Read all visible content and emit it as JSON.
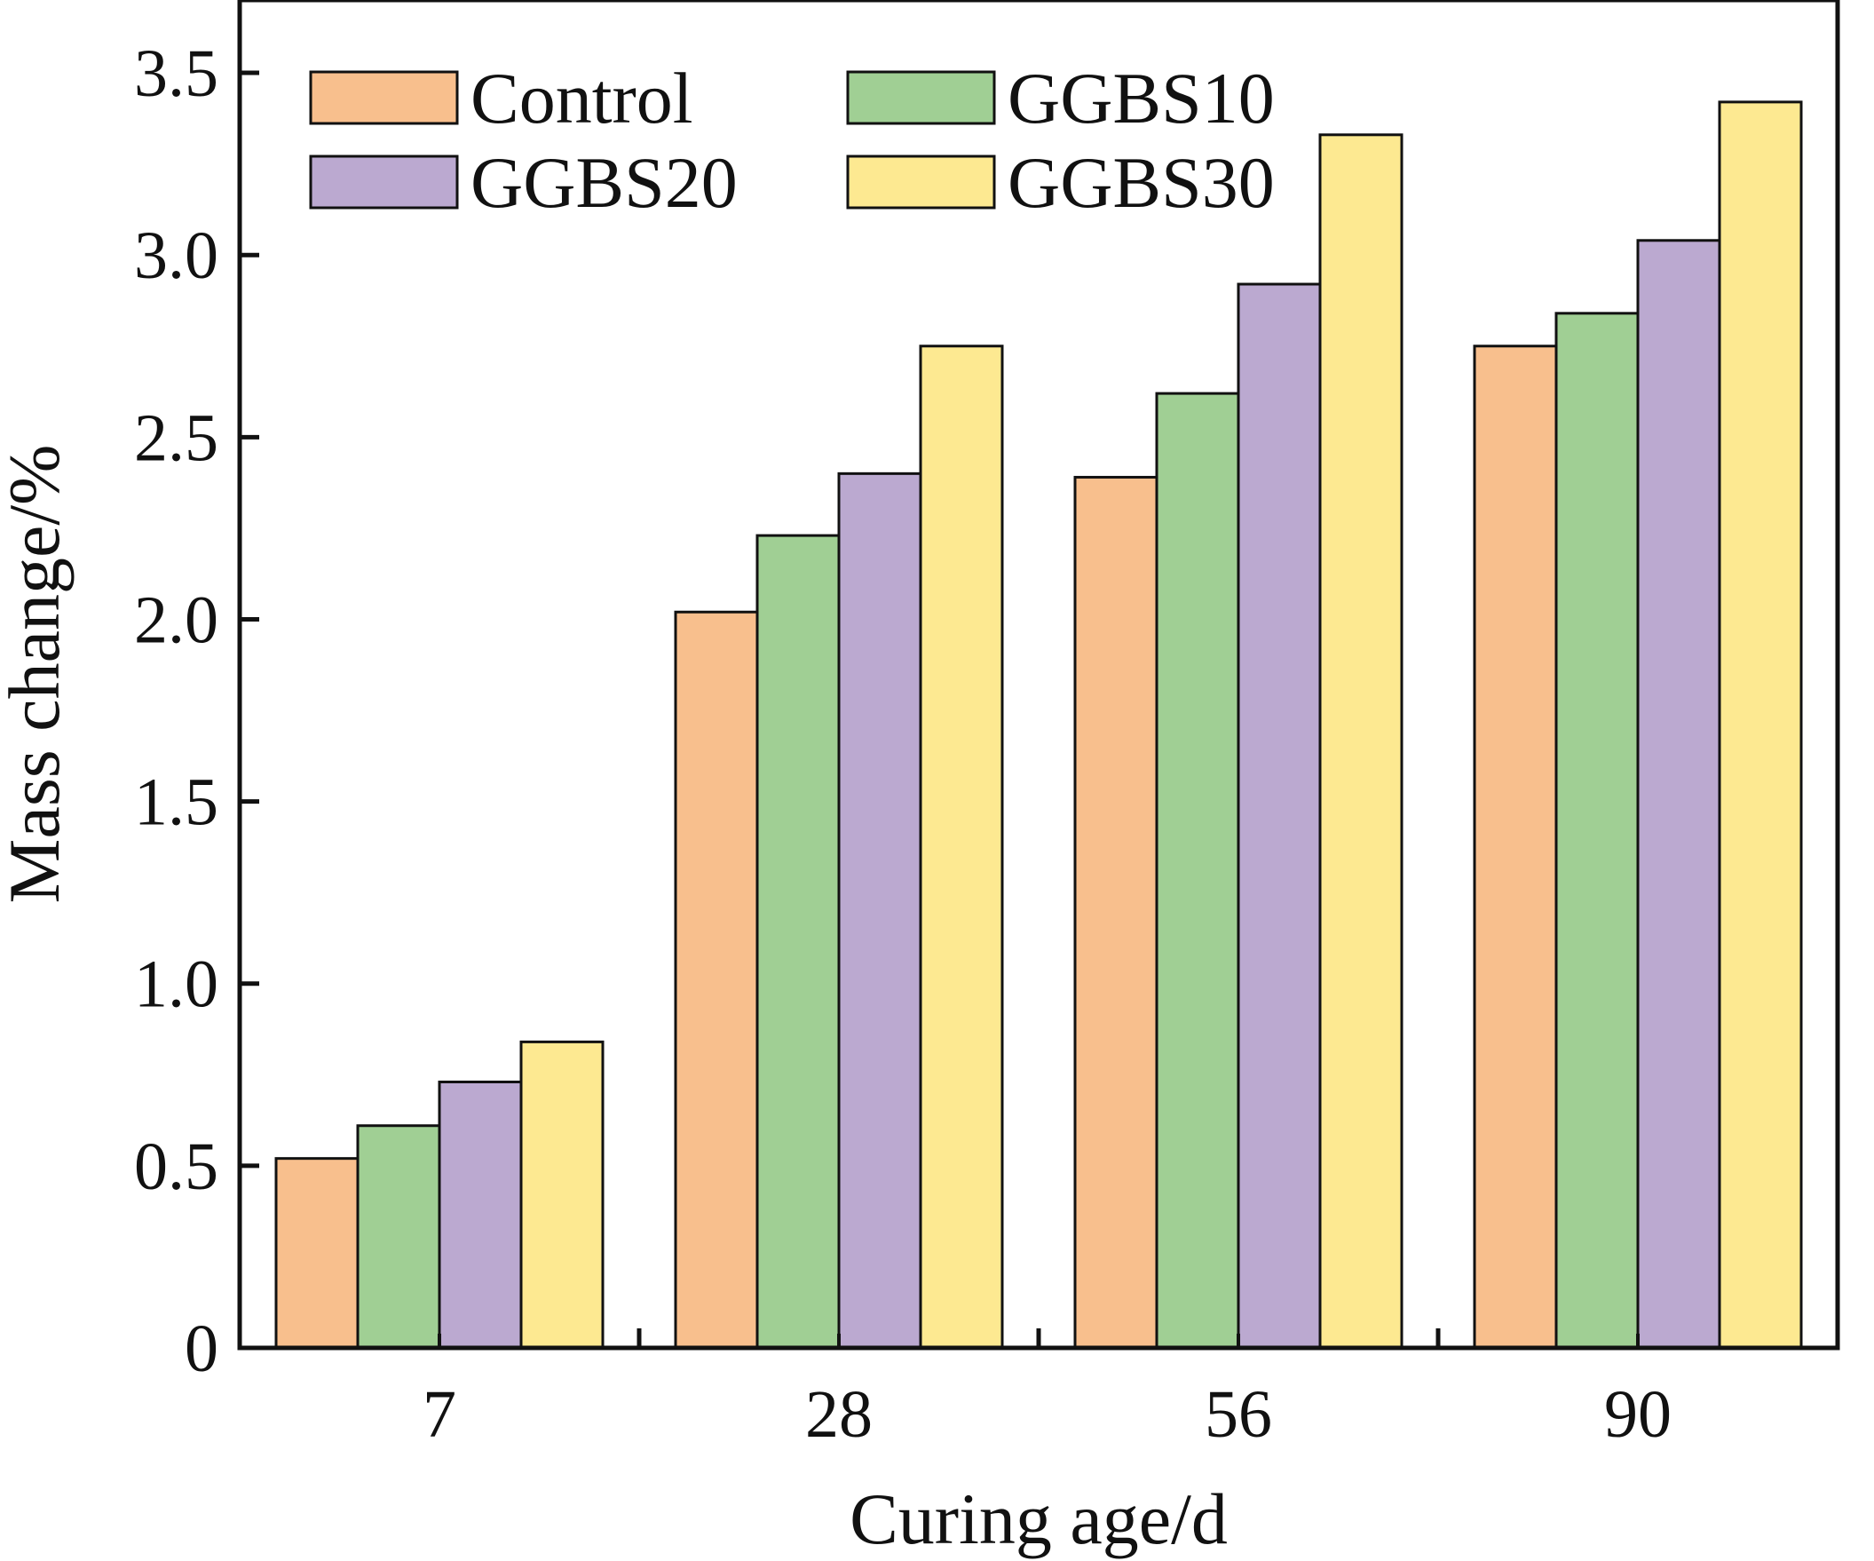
{
  "chart_data": {
    "type": "bar",
    "xlabel": "Curing age/d",
    "ylabel": "Mass change/%",
    "categories": [
      "7",
      "28",
      "56",
      "90"
    ],
    "series": [
      {
        "name": "Control",
        "color": "#f8bf8d",
        "values": [
          0.52,
          2.02,
          2.39,
          2.75
        ]
      },
      {
        "name": "GGBS10",
        "color": "#a0cf94",
        "values": [
          0.61,
          2.23,
          2.62,
          2.84
        ]
      },
      {
        "name": "GGBS20",
        "color": "#bba9d0",
        "values": [
          0.73,
          2.4,
          2.92,
          3.04
        ]
      },
      {
        "name": "GGBS30",
        "color": "#fde991",
        "values": [
          0.84,
          2.75,
          3.33,
          3.42
        ]
      }
    ],
    "ylim": [
      0,
      3.7
    ],
    "yticks": [
      0,
      0.5,
      1.0,
      1.5,
      2.0,
      2.5,
      3.0,
      3.5
    ],
    "ytick_labels": [
      "0",
      "0.5",
      "1.0",
      "1.5",
      "2.0",
      "2.5",
      "3.0",
      "3.5"
    ],
    "legend_position": "top-left",
    "grid": false
  }
}
